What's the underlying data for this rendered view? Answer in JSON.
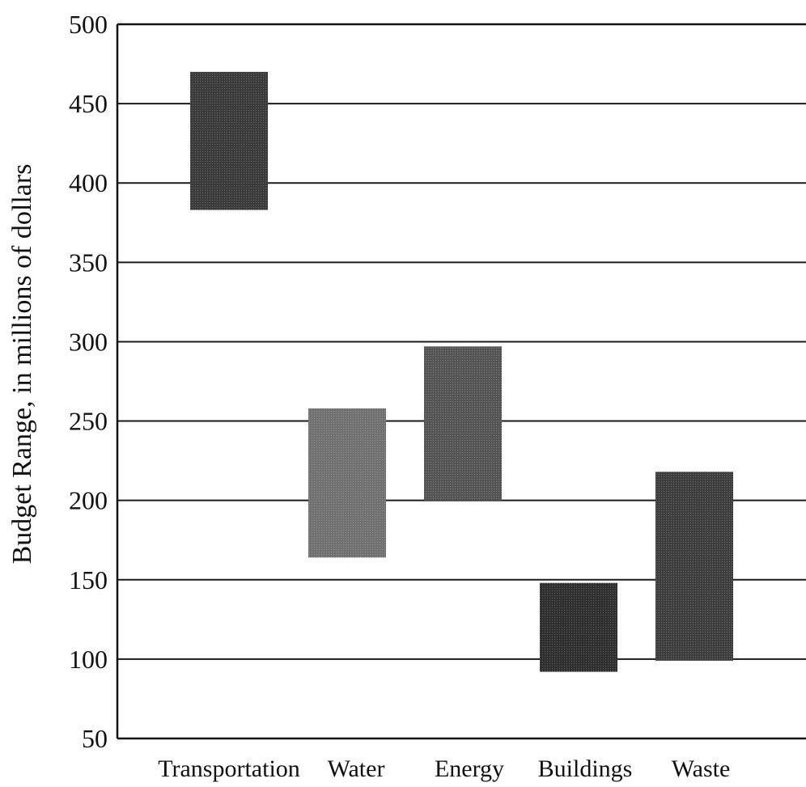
{
  "chart_data": {
    "type": "bar",
    "subtype": "floating-range",
    "title": "",
    "xlabel": "",
    "ylabel": "Budget Range, in millions of dollars",
    "categories": [
      "Transportation",
      "Water",
      "Energy",
      "Buildings",
      "Waste"
    ],
    "ranges": [
      {
        "category": "Transportation",
        "low": 383,
        "high": 470
      },
      {
        "category": "Water",
        "low": 164,
        "high": 258
      },
      {
        "category": "Energy",
        "low": 200,
        "high": 297
      },
      {
        "category": "Buildings",
        "low": 92,
        "high": 148
      },
      {
        "category": "Waste",
        "low": 99,
        "high": 218
      }
    ],
    "ylim": [
      50,
      500
    ],
    "yticks": [
      50,
      100,
      150,
      200,
      250,
      300,
      350,
      400,
      450,
      500
    ],
    "grid": true,
    "legend": "none",
    "bar_colors": [
      "#3a3a3a",
      "#707070",
      "#545454",
      "#2e2e2e",
      "#3d3d3d"
    ]
  }
}
